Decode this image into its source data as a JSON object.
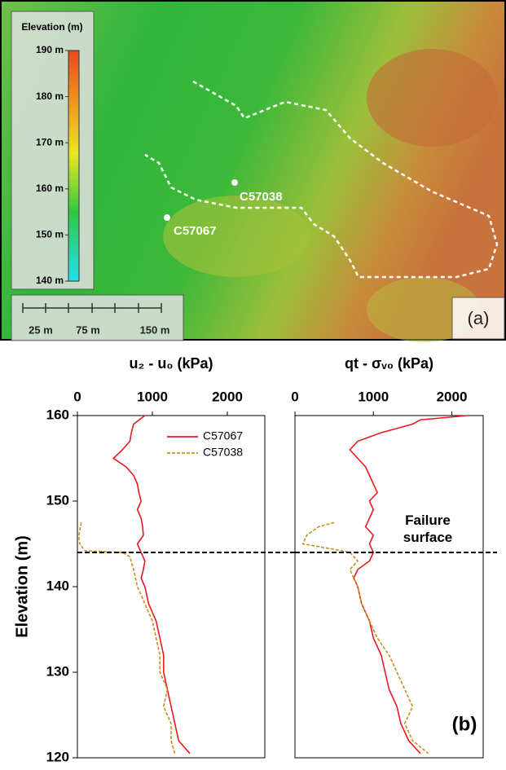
{
  "map": {
    "colorbar": {
      "title": "Elevation (m)",
      "ticks": [
        {
          "value": 190,
          "label": "190 m"
        },
        {
          "value": 180,
          "label": "180 m"
        },
        {
          "value": 170,
          "label": "170 m"
        },
        {
          "value": 160,
          "label": "160 m"
        },
        {
          "value": 150,
          "label": "150 m"
        },
        {
          "value": 140,
          "label": "140 m"
        }
      ]
    },
    "scale_labels": [
      "25 m",
      "75 m",
      "150 m"
    ],
    "sites": [
      "C57038",
      "C57067"
    ],
    "panel_label": "(a)"
  },
  "panel_label": "(b)",
  "chart_data": [
    {
      "type": "line",
      "title": "u₂ - u₀ (kPa)",
      "y_label": "Elevation (m)",
      "xlim": [
        0,
        2500
      ],
      "xticks": [
        0,
        1000,
        2000
      ],
      "ylim": [
        120,
        160
      ],
      "yticks": [
        120,
        130,
        140,
        150,
        160
      ],
      "legend": "upper right",
      "reference_line": {
        "value": 144
      },
      "series": [
        {
          "name": "C57067",
          "color": "#e8191f",
          "dash": false,
          "x": [
            900,
            750,
            720,
            700,
            600,
            480,
            650,
            750,
            800,
            820,
            850,
            800,
            850,
            870,
            880,
            800,
            850,
            900,
            880,
            850,
            900,
            950,
            1050,
            1100,
            1150,
            1150,
            1200,
            1250,
            1300,
            1350,
            1500
          ],
          "y": [
            160,
            159,
            158,
            157,
            156,
            155,
            154,
            153,
            152,
            151,
            150,
            149,
            148,
            147,
            146,
            145,
            144,
            143,
            142,
            141,
            140,
            138,
            136,
            134,
            132,
            130,
            128,
            126,
            124,
            122,
            120.5
          ]
        },
        {
          "name": "C57038",
          "color": "#c8901e",
          "dash": true,
          "x": [
            50,
            20,
            30,
            100,
            600,
            700,
            750,
            800,
            900,
            1000,
            1050,
            1100,
            1100,
            1200,
            1150,
            1250,
            1250,
            1300
          ],
          "y": [
            147.5,
            146,
            145,
            144.2,
            144,
            143.5,
            142,
            140,
            138,
            136,
            134,
            132,
            130,
            128,
            126,
            124,
            122,
            120.5
          ]
        }
      ]
    },
    {
      "type": "line",
      "title": "qt - σᵥ₀ (kPa)",
      "xlim": [
        0,
        2400
      ],
      "xticks": [
        0,
        1000,
        2000
      ],
      "ylim": [
        120,
        160
      ],
      "reference_line": {
        "value": 144,
        "label": "Failure surface"
      },
      "series": [
        {
          "color": "#e8191f",
          "dash": false,
          "x": [
            2200,
            1600,
            1500,
            1100,
            800,
            700,
            800,
            900,
            950,
            1000,
            1050,
            950,
            1000,
            950,
            900,
            1000,
            950,
            1000,
            950,
            800,
            750,
            800,
            850,
            950,
            1000,
            1100,
            1150,
            1200,
            1300,
            1350,
            1450,
            1600
          ],
          "y": [
            160,
            159.5,
            159,
            158,
            157,
            156,
            155,
            154,
            153,
            152,
            151,
            150,
            149,
            148,
            147,
            146,
            145,
            144,
            143,
            142,
            141,
            140,
            138,
            136,
            134,
            132,
            130,
            128,
            126,
            124,
            122,
            120.5
          ]
        },
        {
          "color": "#c8901e",
          "dash": true,
          "x": [
            500,
            300,
            150,
            100,
            600,
            700,
            800,
            700,
            800,
            850,
            950,
            1050,
            1200,
            1300,
            1400,
            1500,
            1400,
            1500,
            1700
          ],
          "y": [
            147.5,
            147,
            146,
            145,
            144.2,
            144,
            143,
            142,
            140,
            138,
            136,
            134,
            132,
            130,
            128,
            126,
            124,
            122,
            120.5
          ]
        }
      ]
    }
  ]
}
